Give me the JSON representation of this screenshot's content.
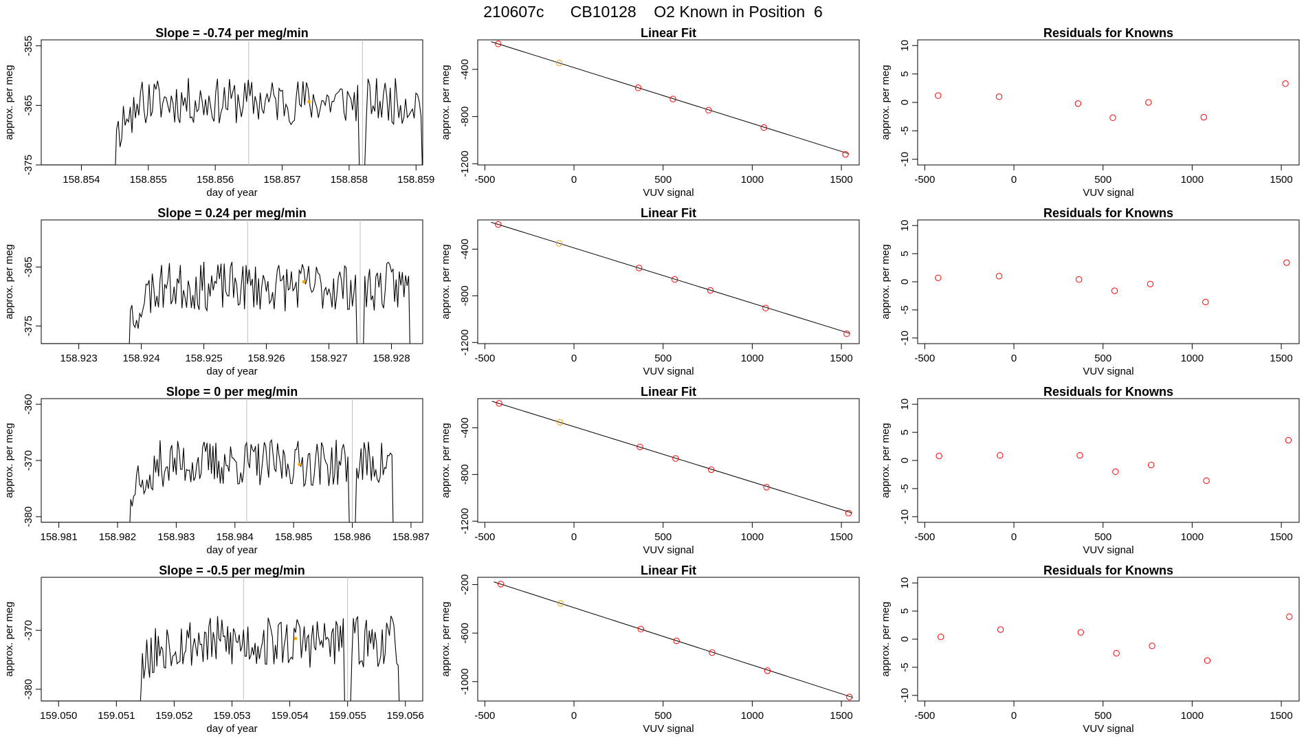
{
  "page_title": "210607c      CB10128    O2 Known in Position  6",
  "colors": {
    "line": "#000000",
    "highlight": "#ffa500",
    "residual": "#ff0000",
    "vline": "#bebebe",
    "fit": "#000000"
  },
  "chart_data": [
    {
      "type": "line",
      "panel": "time-series-1",
      "title": "Slope =  -0.74  per meg/min",
      "xlabel": "day of year",
      "ylabel": "approx. per meg",
      "xlim": [
        158.8534,
        158.8591
      ],
      "ylim": [
        -375,
        -354
      ],
      "xticks": [
        "158.854",
        "158.855",
        "158.856",
        "158.857",
        "158.858",
        "158.859"
      ],
      "yticks": [
        "-355",
        "-365",
        "-375"
      ],
      "start": 158.8545,
      "end": 158.8591,
      "mean": -364.3,
      "amp": 2.8,
      "seed": 11,
      "dips": [
        {
          "x": 158.8582,
          "y": -376
        }
      ],
      "vlines": [
        158.8565,
        158.8582
      ],
      "marker": {
        "x": 158.8574,
        "y": -364.4
      }
    },
    {
      "type": "scatter",
      "panel": "linear-fit-1",
      "title": "Linear Fit",
      "xlabel": "VUV signal",
      "ylabel": "approx. per meg",
      "xlim": [
        -540,
        1600
      ],
      "ylim": [
        -1210,
        -150
      ],
      "xticks": [
        "-500",
        "0",
        "500",
        "1000",
        "1500"
      ],
      "yticks": [
        "-400",
        "-800",
        "-1200"
      ],
      "x": [
        -425,
        -83,
        360,
        555,
        755,
        1065,
        1523
      ],
      "y": [
        -184,
        -346,
        -556,
        -651,
        -746,
        -893,
        -1120
      ],
      "highlight_index": 1,
      "fit": {
        "slope": -0.4733,
        "intercept": -385.3
      }
    },
    {
      "type": "scatter",
      "panel": "residuals-1",
      "title": "Residuals for Knowns",
      "xlabel": "VUV signal",
      "ylabel": "approx. per meg",
      "xlim": [
        -540,
        1600
      ],
      "ylim": [
        -11,
        11
      ],
      "xticks": [
        "-500",
        "0",
        "500",
        "1000",
        "1500"
      ],
      "yticks": [
        "10",
        "5",
        "0",
        "-5",
        "-10"
      ],
      "x": [
        -425,
        -83,
        360,
        555,
        755,
        1065,
        1523
      ],
      "y": [
        1.2,
        1.0,
        -0.2,
        -2.7,
        0,
        -2.6,
        3.3
      ]
    },
    {
      "type": "line",
      "panel": "time-series-2",
      "title": "Slope =  0.24  per meg/min",
      "xlabel": "day of year",
      "ylabel": "approx. per meg",
      "xlim": [
        158.9224,
        158.9285
      ],
      "ylim": [
        -378,
        -357
      ],
      "xticks": [
        "158.923",
        "158.924",
        "158.925",
        "158.926",
        "158.927",
        "158.928"
      ],
      "yticks": [
        "-365",
        "-375"
      ],
      "start": 158.9238,
      "end": 158.9283,
      "mean": -368.3,
      "amp": 3.0,
      "seed": 23,
      "dips": [
        {
          "x": 158.9275,
          "y": -379
        }
      ],
      "vlines": [
        158.9257,
        158.9275
      ],
      "marker": {
        "x": 158.9266,
        "y": -367.5
      }
    },
    {
      "type": "scatter",
      "panel": "linear-fit-2",
      "title": "Linear Fit",
      "xlabel": "VUV signal",
      "ylabel": "approx. per meg",
      "xlim": [
        -540,
        1600
      ],
      "ylim": [
        -1210,
        -150
      ],
      "xticks": [
        "-500",
        "0",
        "500",
        "1000",
        "1500"
      ],
      "yticks": [
        "-400",
        "-800",
        "-1200"
      ],
      "x": [
        -425,
        -83,
        365,
        565,
        765,
        1075,
        1530
      ],
      "y": [
        -189,
        -351,
        -562,
        -660,
        -754,
        -905,
        -1126
      ],
      "highlight_index": 1,
      "fit": {
        "slope": -0.4733,
        "intercept": -390
      }
    },
    {
      "type": "scatter",
      "panel": "residuals-2",
      "title": "Residuals for Knowns",
      "xlabel": "VUV signal",
      "ylabel": "approx. per meg",
      "xlim": [
        -540,
        1600
      ],
      "ylim": [
        -11,
        11
      ],
      "xticks": [
        "-500",
        "0",
        "500",
        "1000",
        "1500"
      ],
      "yticks": [
        "10",
        "5",
        "0",
        "-5",
        "-10"
      ],
      "x": [
        -425,
        -83,
        365,
        565,
        765,
        1075,
        1530
      ],
      "y": [
        0.7,
        1.0,
        0.4,
        -1.6,
        -0.4,
        -3.6,
        3.4
      ]
    },
    {
      "type": "line",
      "panel": "time-series-3",
      "title": "Slope =  0  per meg/min",
      "xlabel": "day of year",
      "ylabel": "approx. per meg",
      "xlim": [
        158.9807,
        158.9872
      ],
      "ylim": [
        -381,
        -359
      ],
      "xticks": [
        "158.981",
        "158.982",
        "158.983",
        "158.984",
        "158.985",
        "158.986",
        "158.987"
      ],
      "yticks": [
        "-360",
        "-370",
        "-380"
      ],
      "start": 158.9822,
      "end": 158.9867,
      "mean": -370.5,
      "amp": 3.0,
      "seed": 37,
      "dips": [
        {
          "x": 158.986,
          "y": -382
        }
      ],
      "vlines": [
        158.9842,
        158.986
      ],
      "marker": {
        "x": 158.9851,
        "y": -370.7
      }
    },
    {
      "type": "scatter",
      "panel": "linear-fit-3",
      "title": "Linear Fit",
      "xlabel": "VUV signal",
      "ylabel": "approx. per meg",
      "xlim": [
        -540,
        1600
      ],
      "ylim": [
        -1210,
        -150
      ],
      "xticks": [
        "-500",
        "0",
        "500",
        "1000",
        "1500"
      ],
      "yticks": [
        "-400",
        "-800",
        "-1200"
      ],
      "x": [
        -420,
        -78,
        370,
        570,
        770,
        1080,
        1540
      ],
      "y": [
        -191,
        -353,
        -564,
        -663,
        -759,
        -909,
        -1131
      ],
      "highlight_index": 1,
      "fit": {
        "slope": -0.4733,
        "intercept": -390.5
      }
    },
    {
      "type": "scatter",
      "panel": "residuals-3",
      "title": "Residuals for Knowns",
      "xlabel": "VUV signal",
      "ylabel": "approx. per meg",
      "xlim": [
        -540,
        1600
      ],
      "ylim": [
        -11,
        11
      ],
      "xticks": [
        "-500",
        "0",
        "500",
        "1000",
        "1500"
      ],
      "yticks": [
        "10",
        "5",
        "0",
        "-5",
        "-10"
      ],
      "x": [
        -420,
        -78,
        370,
        570,
        770,
        1080,
        1540
      ],
      "y": [
        0.8,
        0.9,
        0.9,
        -2.0,
        -0.8,
        -3.6,
        3.6
      ]
    },
    {
      "type": "line",
      "panel": "time-series-4",
      "title": "Slope =  -0.5  per meg/min",
      "xlabel": "day of year",
      "ylabel": "approx. per meg",
      "xlim": [
        159.0497,
        159.0563
      ],
      "ylim": [
        -382,
        -361
      ],
      "xticks": [
        "159.050",
        "159.051",
        "159.052",
        "159.053",
        "159.054",
        "159.055",
        "159.056"
      ],
      "yticks": [
        "-370",
        "-380"
      ],
      "start": 159.0514,
      "end": 159.0559,
      "mean": -372.0,
      "amp": 3.2,
      "seed": 53,
      "dips": [
        {
          "x": 159.055,
          "y": -383
        }
      ],
      "vlines": [
        159.0532,
        159.055
      ],
      "marker": {
        "x": 159.0541,
        "y": -371.4
      }
    },
    {
      "type": "scatter",
      "panel": "linear-fit-4",
      "title": "Linear Fit",
      "xlabel": "VUV signal",
      "ylabel": "approx. per meg",
      "xlim": [
        -540,
        1600
      ],
      "ylim": [
        -1160,
        -140
      ],
      "xticks": [
        "-500",
        "0",
        "500",
        "1000",
        "1500"
      ],
      "yticks": [
        "-200",
        "-600",
        "-1000"
      ],
      "x": [
        -410,
        -75,
        375,
        575,
        775,
        1085,
        1545
      ],
      "y": [
        -196,
        -355,
        -567,
        -664,
        -761,
        -910,
        -1127
      ],
      "highlight_index": 1,
      "fit": {
        "slope": -0.4733,
        "intercept": -390.5
      }
    },
    {
      "type": "scatter",
      "panel": "residuals-4",
      "title": "Residuals for Knowns",
      "xlabel": "VUV signal",
      "ylabel": "approx. per meg",
      "xlim": [
        -540,
        1600
      ],
      "ylim": [
        -11,
        11
      ],
      "xticks": [
        "-500",
        "0",
        "500",
        "1000",
        "1500"
      ],
      "yticks": [
        "10",
        "5",
        "0",
        "-5",
        "-10"
      ],
      "x": [
        -410,
        -75,
        375,
        575,
        775,
        1085,
        1545
      ],
      "y": [
        0.4,
        1.7,
        1.2,
        -2.5,
        -1.2,
        -3.8,
        4.0
      ]
    }
  ]
}
